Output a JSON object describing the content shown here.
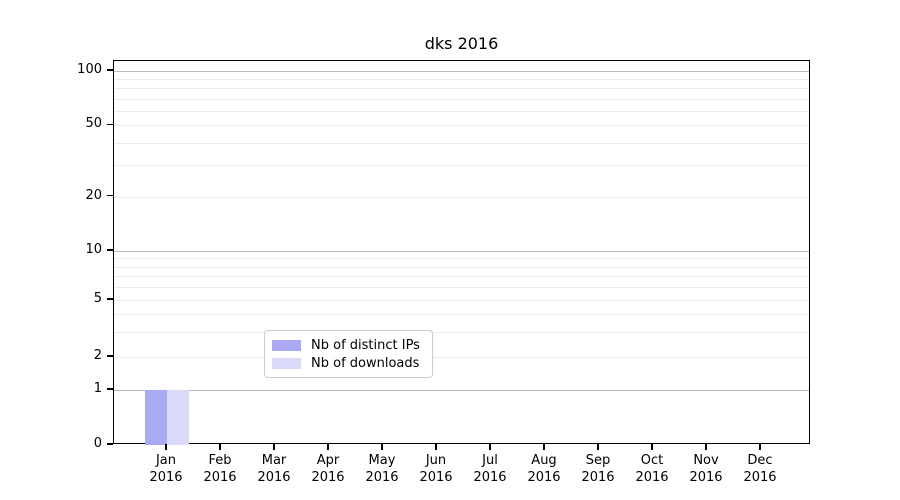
{
  "title": "dks 2016",
  "colors": {
    "distinct_ips": "#a9a9f4",
    "downloads": "#dadaf8",
    "major_grid": "#bbbbbb",
    "minor_grid": "#ebebeb",
    "spine": "#000000",
    "legend_border": "#cccccc"
  },
  "legend": {
    "items": [
      {
        "label": "Nb of distinct IPs",
        "color_key": "distinct_ips"
      },
      {
        "label": "Nb of downloads",
        "color_key": "downloads"
      }
    ]
  },
  "axes": {
    "y_tick_labels": [
      "100",
      "50",
      "20",
      "10",
      "5",
      "2",
      "1",
      "0"
    ],
    "y_tick_values": [
      100,
      50,
      20,
      10,
      5,
      2,
      1,
      0
    ],
    "y_major_grid_values": [
      1,
      10,
      100
    ],
    "y_minor_grid_values": [
      2,
      3,
      4,
      5,
      6,
      7,
      8,
      9,
      20,
      30,
      40,
      50,
      60,
      70,
      80,
      90
    ],
    "x_tick_labels": [
      {
        "month": "Jan",
        "year": "2016"
      },
      {
        "month": "Feb",
        "year": "2016"
      },
      {
        "month": "Mar",
        "year": "2016"
      },
      {
        "month": "Apr",
        "year": "2016"
      },
      {
        "month": "May",
        "year": "2016"
      },
      {
        "month": "Jun",
        "year": "2016"
      },
      {
        "month": "Jul",
        "year": "2016"
      },
      {
        "month": "Aug",
        "year": "2016"
      },
      {
        "month": "Sep",
        "year": "2016"
      },
      {
        "month": "Oct",
        "year": "2016"
      },
      {
        "month": "Nov",
        "year": "2016"
      },
      {
        "month": "Dec",
        "year": "2016"
      }
    ]
  },
  "chart_data": {
    "type": "bar",
    "title": "dks 2016",
    "categories": [
      "Jan 2016",
      "Feb 2016",
      "Mar 2016",
      "Apr 2016",
      "May 2016",
      "Jun 2016",
      "Jul 2016",
      "Aug 2016",
      "Sep 2016",
      "Oct 2016",
      "Nov 2016",
      "Dec 2016"
    ],
    "series": [
      {
        "name": "Nb of distinct IPs",
        "values": [
          1,
          0,
          0,
          0,
          0,
          0,
          0,
          0,
          0,
          0,
          0,
          0
        ]
      },
      {
        "name": "Nb of downloads",
        "values": [
          1,
          0,
          0,
          0,
          0,
          0,
          0,
          0,
          0,
          0,
          0,
          0
        ]
      }
    ],
    "xlabel": "",
    "ylabel": "",
    "yscale": "symlog-like (linear 0-1, log above)",
    "yticks": [
      0,
      1,
      2,
      5,
      10,
      20,
      50,
      100
    ],
    "ylim": [
      0,
      120
    ],
    "grid": "on (horizontal only)",
    "legend_position": "lower center"
  }
}
